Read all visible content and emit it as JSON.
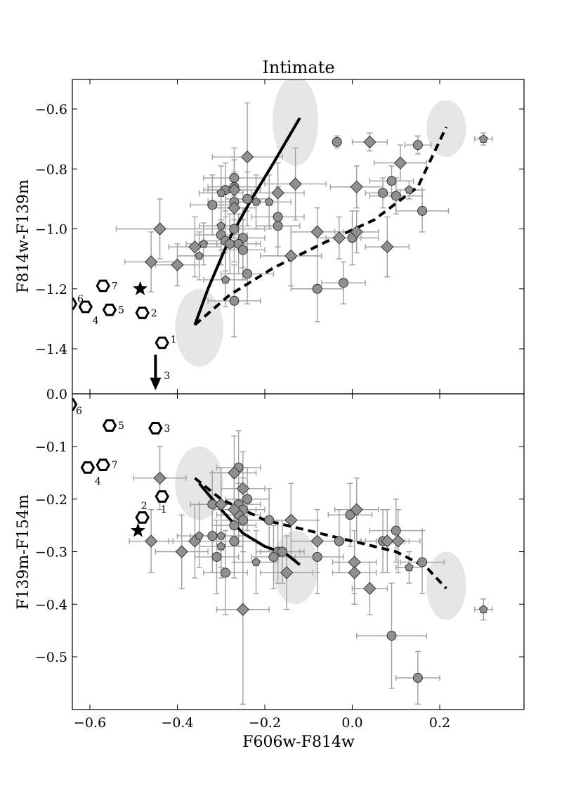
{
  "chart_data": [
    {
      "panel": "top",
      "type": "scatter",
      "title": "Intimate",
      "ylabel": "F814w-F139m",
      "xlabel": "",
      "xlim": [
        -0.65,
        0.39
      ],
      "ylim": [
        -0.5,
        -1.97
      ],
      "y_inverted": true,
      "yticks": [
        -0.6,
        -0.8,
        -1.0,
        -1.2,
        -1.4,
        0.0
      ],
      "ytick_labels": [
        "−0.6",
        "−0.8",
        "−1.0",
        "−1.2",
        "−1.4",
        "0.0"
      ],
      "colors": {
        "marker_fill": "#909090",
        "errorbar": "#a0a0a0",
        "ellipse": "#e6e6e6",
        "curve": "#000000"
      },
      "ellipses": [
        {
          "cx": -0.35,
          "cy": -1.33,
          "rx": 0.055,
          "ry": 0.13
        },
        {
          "cx": -0.13,
          "cy": -0.64,
          "rx": 0.052,
          "ry": 0.15
        },
        {
          "cx": 0.215,
          "cy": -0.665,
          "rx": 0.045,
          "ry": 0.095
        }
      ],
      "curves": [
        {
          "style": "solid",
          "points": [
            [
              -0.36,
              -1.32
            ],
            [
              -0.33,
              -1.2
            ],
            [
              -0.28,
              -1.03
            ],
            [
              -0.23,
              -0.9
            ],
            [
              -0.18,
              -0.78
            ],
            [
              -0.12,
              -0.63
            ]
          ]
        },
        {
          "style": "dashed",
          "points": [
            [
              -0.36,
              -1.32
            ],
            [
              -0.28,
              -1.22
            ],
            [
              -0.18,
              -1.13
            ],
            [
              -0.07,
              -1.05
            ],
            [
              0.05,
              -0.97
            ],
            [
              0.15,
              -0.86
            ],
            [
              0.215,
              -0.66
            ]
          ]
        }
      ],
      "points": [
        {
          "m": "c",
          "x": -0.035,
          "y": -0.71,
          "ex": 0.0,
          "ey": 0.02
        },
        {
          "m": "c",
          "x": 0.15,
          "y": -0.72,
          "ex": 0.03,
          "ey": 0.03
        },
        {
          "m": "c",
          "x": 0.09,
          "y": -0.84,
          "ex": 0.05,
          "ey": 0.05
        },
        {
          "m": "c",
          "x": 0.07,
          "y": -0.88,
          "ex": 0.04,
          "ey": 0.05
        },
        {
          "m": "c",
          "x": 0.1,
          "y": -0.89,
          "ex": 0.06,
          "ey": 0.06
        },
        {
          "m": "c",
          "x": 0.16,
          "y": -0.94,
          "ex": 0.06,
          "ey": 0.07
        },
        {
          "m": "c",
          "x": -0.27,
          "y": -0.83,
          "ex": 0.07,
          "ey": 0.1
        },
        {
          "m": "c",
          "x": -0.27,
          "y": -0.86,
          "ex": 0.06,
          "ey": 0.09
        },
        {
          "m": "c",
          "x": -0.29,
          "y": -0.87,
          "ex": 0.05,
          "ey": 0.09
        },
        {
          "m": "c",
          "x": -0.24,
          "y": -0.9,
          "ex": 0.05,
          "ey": 0.09
        },
        {
          "m": "c",
          "x": -0.32,
          "y": -0.92,
          "ex": 0.05,
          "ey": 0.1
        },
        {
          "m": "c",
          "x": -0.27,
          "y": -0.91,
          "ex": 0.06,
          "ey": 0.1
        },
        {
          "m": "c",
          "x": -0.27,
          "y": -1.0,
          "ex": 0.07,
          "ey": 0.11
        },
        {
          "m": "c",
          "x": -0.25,
          "y": -1.03,
          "ex": 0.05,
          "ey": 0.1
        },
        {
          "m": "c",
          "x": -0.3,
          "y": -1.02,
          "ex": 0.06,
          "ey": 0.1
        },
        {
          "m": "c",
          "x": -0.29,
          "y": -1.04,
          "ex": 0.05,
          "ey": 0.1
        },
        {
          "m": "c",
          "x": -0.28,
          "y": -1.05,
          "ex": 0.06,
          "ey": 0.1
        },
        {
          "m": "c",
          "x": -0.26,
          "y": -1.05,
          "ex": 0.05,
          "ey": 0.1
        },
        {
          "m": "c",
          "x": -0.25,
          "y": -1.07,
          "ex": 0.05,
          "ey": 0.1
        },
        {
          "m": "c",
          "x": -0.24,
          "y": -1.15,
          "ex": 0.06,
          "ey": 0.1
        },
        {
          "m": "c",
          "x": -0.27,
          "y": -1.24,
          "ex": 0.06,
          "ey": 0.12
        },
        {
          "m": "c",
          "x": -0.17,
          "y": -0.96,
          "ex": 0.06,
          "ey": 0.1
        },
        {
          "m": "c",
          "x": -0.17,
          "y": -0.99,
          "ex": 0.05,
          "ey": 0.1
        },
        {
          "m": "c",
          "x": -0.08,
          "y": -1.2,
          "ex": 0.06,
          "ey": 0.11
        },
        {
          "m": "c",
          "x": -0.02,
          "y": -1.18,
          "ex": 0.05,
          "ey": 0.07
        },
        {
          "m": "c",
          "x": 0.0,
          "y": -1.03,
          "ex": 0.06,
          "ey": 0.09
        },
        {
          "m": "d",
          "x": -0.24,
          "y": -0.76,
          "ex": 0.08,
          "ey": 0.18
        },
        {
          "m": "d",
          "x": 0.04,
          "y": -0.71,
          "ex": 0.04,
          "ey": 0.03
        },
        {
          "m": "d",
          "x": 0.11,
          "y": -0.78,
          "ex": 0.06,
          "ey": 0.06
        },
        {
          "m": "d",
          "x": -0.13,
          "y": -0.85,
          "ex": 0.07,
          "ey": 0.12
        },
        {
          "m": "d",
          "x": 0.01,
          "y": -0.86,
          "ex": 0.06,
          "ey": 0.07
        },
        {
          "m": "d",
          "x": -0.27,
          "y": -0.87,
          "ex": 0.06,
          "ey": 0.1
        },
        {
          "m": "d",
          "x": -0.17,
          "y": -0.88,
          "ex": 0.06,
          "ey": 0.1
        },
        {
          "m": "d",
          "x": -0.27,
          "y": -0.93,
          "ex": 0.05,
          "ey": 0.1
        },
        {
          "m": "d",
          "x": -0.44,
          "y": -1.0,
          "ex": 0.1,
          "ey": 0.1
        },
        {
          "m": "d",
          "x": -0.08,
          "y": -1.01,
          "ex": 0.06,
          "ey": 0.08
        },
        {
          "m": "d",
          "x": 0.01,
          "y": -1.01,
          "ex": 0.05,
          "ey": 0.07
        },
        {
          "m": "d",
          "x": -0.03,
          "y": -1.03,
          "ex": 0.05,
          "ey": 0.07
        },
        {
          "m": "d",
          "x": -0.36,
          "y": -1.06,
          "ex": 0.06,
          "ey": 0.1
        },
        {
          "m": "d",
          "x": 0.08,
          "y": -1.06,
          "ex": 0.05,
          "ey": 0.1
        },
        {
          "m": "d",
          "x": -0.14,
          "y": -1.09,
          "ex": 0.07,
          "ey": 0.1
        },
        {
          "m": "d",
          "x": -0.46,
          "y": -1.11,
          "ex": 0.06,
          "ey": 0.1
        },
        {
          "m": "d",
          "x": -0.4,
          "y": -1.12,
          "ex": 0.05,
          "ey": 0.07
        },
        {
          "m": "p",
          "x": -0.3,
          "y": -0.88,
          "ex": 0.05,
          "ey": 0.09
        },
        {
          "m": "p",
          "x": -0.22,
          "y": -0.91,
          "ex": 0.05,
          "ey": 0.09
        },
        {
          "m": "p",
          "x": -0.19,
          "y": -0.91,
          "ex": 0.05,
          "ey": 0.09
        },
        {
          "m": "p",
          "x": -0.3,
          "y": -0.99,
          "ex": 0.05,
          "ey": 0.08
        },
        {
          "m": "p",
          "x": -0.35,
          "y": -1.09,
          "ex": 0.05,
          "ey": 0.08
        },
        {
          "m": "p",
          "x": -0.34,
          "y": -1.05,
          "ex": 0.04,
          "ey": 0.07
        },
        {
          "m": "p",
          "x": -0.29,
          "y": -1.17,
          "ex": 0.05,
          "ey": 0.09
        },
        {
          "m": "p",
          "x": 0.13,
          "y": -0.87,
          "ex": 0.03,
          "ey": 0.03
        },
        {
          "m": "p",
          "x": 0.3,
          "y": -0.7,
          "ex": 0.02,
          "ey": 0.02
        }
      ],
      "stars": [
        {
          "x": -0.485,
          "y": -1.2
        }
      ],
      "models": [
        {
          "label": "1",
          "x": -0.435,
          "y": -1.38
        },
        {
          "label": "2",
          "x": -0.48,
          "y": -1.28
        },
        {
          "label": "4",
          "x": -0.61,
          "y": -1.26
        },
        {
          "label": "5",
          "x": -0.555,
          "y": -1.27
        },
        {
          "label": "6",
          "x": -0.645,
          "y": -1.25
        },
        {
          "label": "7",
          "x": -0.57,
          "y": -1.19
        }
      ],
      "arrow": {
        "label": "3",
        "x": -0.45,
        "y_from": -1.42,
        "y_to": -1.97
      }
    },
    {
      "panel": "bottom",
      "type": "scatter",
      "title": "",
      "ylabel": "F139m-F154m",
      "xlabel": "F606w-F814w",
      "xlim": [
        -0.65,
        0.39
      ],
      "ylim": [
        0.0,
        -0.6
      ],
      "y_inverted": true,
      "xticks": [
        -0.6,
        -0.4,
        -0.2,
        0.0,
        0.2
      ],
      "xtick_labels": [
        "−0.6",
        "−0.4",
        "−0.2",
        "0.0",
        "0.2"
      ],
      "yticks": [
        -0.1,
        -0.2,
        -0.3,
        -0.4,
        -0.5
      ],
      "ytick_labels": [
        "−0.1",
        "−0.2",
        "−0.3",
        "−0.4",
        "−0.5"
      ],
      "ellipses": [
        {
          "cx": -0.35,
          "cy": -0.17,
          "rx": 0.055,
          "ry": 0.07
        },
        {
          "cx": -0.13,
          "cy": -0.33,
          "rx": 0.052,
          "ry": 0.07
        },
        {
          "cx": 0.215,
          "cy": -0.365,
          "rx": 0.045,
          "ry": 0.065
        }
      ],
      "curves": [
        {
          "style": "solid",
          "points": [
            [
              -0.35,
              -0.17
            ],
            [
              -0.3,
              -0.22
            ],
            [
              -0.25,
              -0.265
            ],
            [
              -0.2,
              -0.29
            ],
            [
              -0.15,
              -0.305
            ],
            [
              -0.12,
              -0.325
            ]
          ]
        },
        {
          "style": "dashed",
          "points": [
            [
              -0.36,
              -0.16
            ],
            [
              -0.3,
              -0.2
            ],
            [
              -0.2,
              -0.24
            ],
            [
              -0.1,
              -0.26
            ],
            [
              0.0,
              -0.28
            ],
            [
              0.1,
              -0.3
            ],
            [
              0.17,
              -0.33
            ],
            [
              0.215,
              -0.37
            ]
          ]
        }
      ],
      "points": [
        {
          "m": "c",
          "x": -0.26,
          "y": -0.14,
          "ex": 0.05,
          "ey": 0.07
        },
        {
          "m": "c",
          "x": -0.24,
          "y": -0.2,
          "ex": 0.05,
          "ey": 0.06
        },
        {
          "m": "c",
          "x": -0.26,
          "y": -0.21,
          "ex": 0.05,
          "ey": 0.06
        },
        {
          "m": "c",
          "x": -0.25,
          "y": -0.22,
          "ex": 0.05,
          "ey": 0.06
        },
        {
          "m": "c",
          "x": -0.26,
          "y": -0.23,
          "ex": 0.05,
          "ey": 0.06
        },
        {
          "m": "c",
          "x": -0.25,
          "y": -0.24,
          "ex": 0.05,
          "ey": 0.06
        },
        {
          "m": "c",
          "x": -0.32,
          "y": -0.21,
          "ex": 0.05,
          "ey": 0.06
        },
        {
          "m": "c",
          "x": -0.27,
          "y": -0.25,
          "ex": 0.05,
          "ey": 0.07
        },
        {
          "m": "c",
          "x": -0.27,
          "y": -0.28,
          "ex": 0.05,
          "ey": 0.07
        },
        {
          "m": "c",
          "x": -0.32,
          "y": -0.27,
          "ex": 0.05,
          "ey": 0.07
        },
        {
          "m": "c",
          "x": -0.31,
          "y": -0.31,
          "ex": 0.05,
          "ey": 0.07
        },
        {
          "m": "c",
          "x": -0.29,
          "y": -0.34,
          "ex": 0.05,
          "ey": 0.08
        },
        {
          "m": "c",
          "x": -0.19,
          "y": -0.24,
          "ex": 0.05,
          "ey": 0.06
        },
        {
          "m": "c",
          "x": -0.17,
          "y": -0.3,
          "ex": 0.05,
          "ey": 0.06
        },
        {
          "m": "c",
          "x": -0.18,
          "y": -0.31,
          "ex": 0.05,
          "ey": 0.06
        },
        {
          "m": "c",
          "x": -0.16,
          "y": -0.3,
          "ex": 0.05,
          "ey": 0.06
        },
        {
          "m": "c",
          "x": -0.08,
          "y": -0.31,
          "ex": 0.06,
          "ey": 0.07
        },
        {
          "m": "c",
          "x": -0.03,
          "y": -0.28,
          "ex": 0.05,
          "ey": 0.06
        },
        {
          "m": "c",
          "x": -0.005,
          "y": -0.23,
          "ex": 0.05,
          "ey": 0.06
        },
        {
          "m": "c",
          "x": 0.07,
          "y": -0.28,
          "ex": 0.05,
          "ey": 0.06
        },
        {
          "m": "c",
          "x": 0.1,
          "y": -0.26,
          "ex": 0.06,
          "ey": 0.06
        },
        {
          "m": "c",
          "x": 0.16,
          "y": -0.32,
          "ex": 0.05,
          "ey": 0.06
        },
        {
          "m": "c",
          "x": 0.09,
          "y": -0.46,
          "ex": 0.08,
          "ey": 0.1
        },
        {
          "m": "c",
          "x": 0.15,
          "y": -0.54,
          "ex": 0.05,
          "ey": 0.05
        },
        {
          "m": "d",
          "x": -0.44,
          "y": -0.16,
          "ex": 0.06,
          "ey": 0.06
        },
        {
          "m": "d",
          "x": -0.27,
          "y": -0.15,
          "ex": 0.05,
          "ey": 0.07
        },
        {
          "m": "d",
          "x": -0.25,
          "y": -0.18,
          "ex": 0.05,
          "ey": 0.07
        },
        {
          "m": "d",
          "x": -0.3,
          "y": -0.21,
          "ex": 0.05,
          "ey": 0.07
        },
        {
          "m": "d",
          "x": -0.27,
          "y": -0.22,
          "ex": 0.05,
          "ey": 0.06
        },
        {
          "m": "d",
          "x": -0.36,
          "y": -0.28,
          "ex": 0.06,
          "ey": 0.07
        },
        {
          "m": "d",
          "x": -0.39,
          "y": -0.3,
          "ex": 0.06,
          "ey": 0.07
        },
        {
          "m": "d",
          "x": -0.46,
          "y": -0.28,
          "ex": 0.05,
          "ey": 0.06
        },
        {
          "m": "d",
          "x": -0.25,
          "y": -0.41,
          "ex": 0.06,
          "ey": 0.18
        },
        {
          "m": "d",
          "x": -0.14,
          "y": -0.24,
          "ex": 0.06,
          "ey": 0.07
        },
        {
          "m": "d",
          "x": -0.08,
          "y": -0.28,
          "ex": 0.06,
          "ey": 0.06
        },
        {
          "m": "d",
          "x": -0.15,
          "y": -0.34,
          "ex": 0.06,
          "ey": 0.07
        },
        {
          "m": "d",
          "x": 0.01,
          "y": -0.22,
          "ex": 0.05,
          "ey": 0.06
        },
        {
          "m": "d",
          "x": 0.005,
          "y": -0.32,
          "ex": 0.05,
          "ey": 0.06
        },
        {
          "m": "d",
          "x": 0.005,
          "y": -0.34,
          "ex": 0.05,
          "ey": 0.06
        },
        {
          "m": "d",
          "x": 0.04,
          "y": -0.37,
          "ex": 0.04,
          "ey": 0.05
        },
        {
          "m": "d",
          "x": 0.08,
          "y": -0.28,
          "ex": 0.05,
          "ey": 0.06
        },
        {
          "m": "d",
          "x": 0.105,
          "y": -0.28,
          "ex": 0.05,
          "ey": 0.06
        },
        {
          "m": "p",
          "x": -0.35,
          "y": -0.27,
          "ex": 0.05,
          "ey": 0.06
        },
        {
          "m": "p",
          "x": -0.3,
          "y": -0.27,
          "ex": 0.05,
          "ey": 0.06
        },
        {
          "m": "p",
          "x": -0.3,
          "y": -0.29,
          "ex": 0.05,
          "ey": 0.06
        },
        {
          "m": "p",
          "x": -0.22,
          "y": -0.32,
          "ex": 0.05,
          "ey": 0.06
        },
        {
          "m": "p",
          "x": 0.13,
          "y": -0.33,
          "ex": 0.03,
          "ey": 0.03
        },
        {
          "m": "p",
          "x": 0.3,
          "y": -0.41,
          "ex": 0.02,
          "ey": 0.02
        }
      ],
      "stars": [
        {
          "x": -0.49,
          "y": -0.26
        }
      ],
      "models": [
        {
          "label": "1",
          "x": -0.435,
          "y": -0.195
        },
        {
          "label": "2",
          "x": -0.48,
          "y": -0.235
        },
        {
          "label": "3",
          "x": -0.45,
          "y": -0.065
        },
        {
          "label": "4",
          "x": -0.605,
          "y": -0.14
        },
        {
          "label": "5",
          "x": -0.555,
          "y": -0.06
        },
        {
          "label": "6",
          "x": -0.645,
          "y": -0.02
        },
        {
          "label": "7",
          "x": -0.57,
          "y": -0.135
        }
      ]
    }
  ]
}
